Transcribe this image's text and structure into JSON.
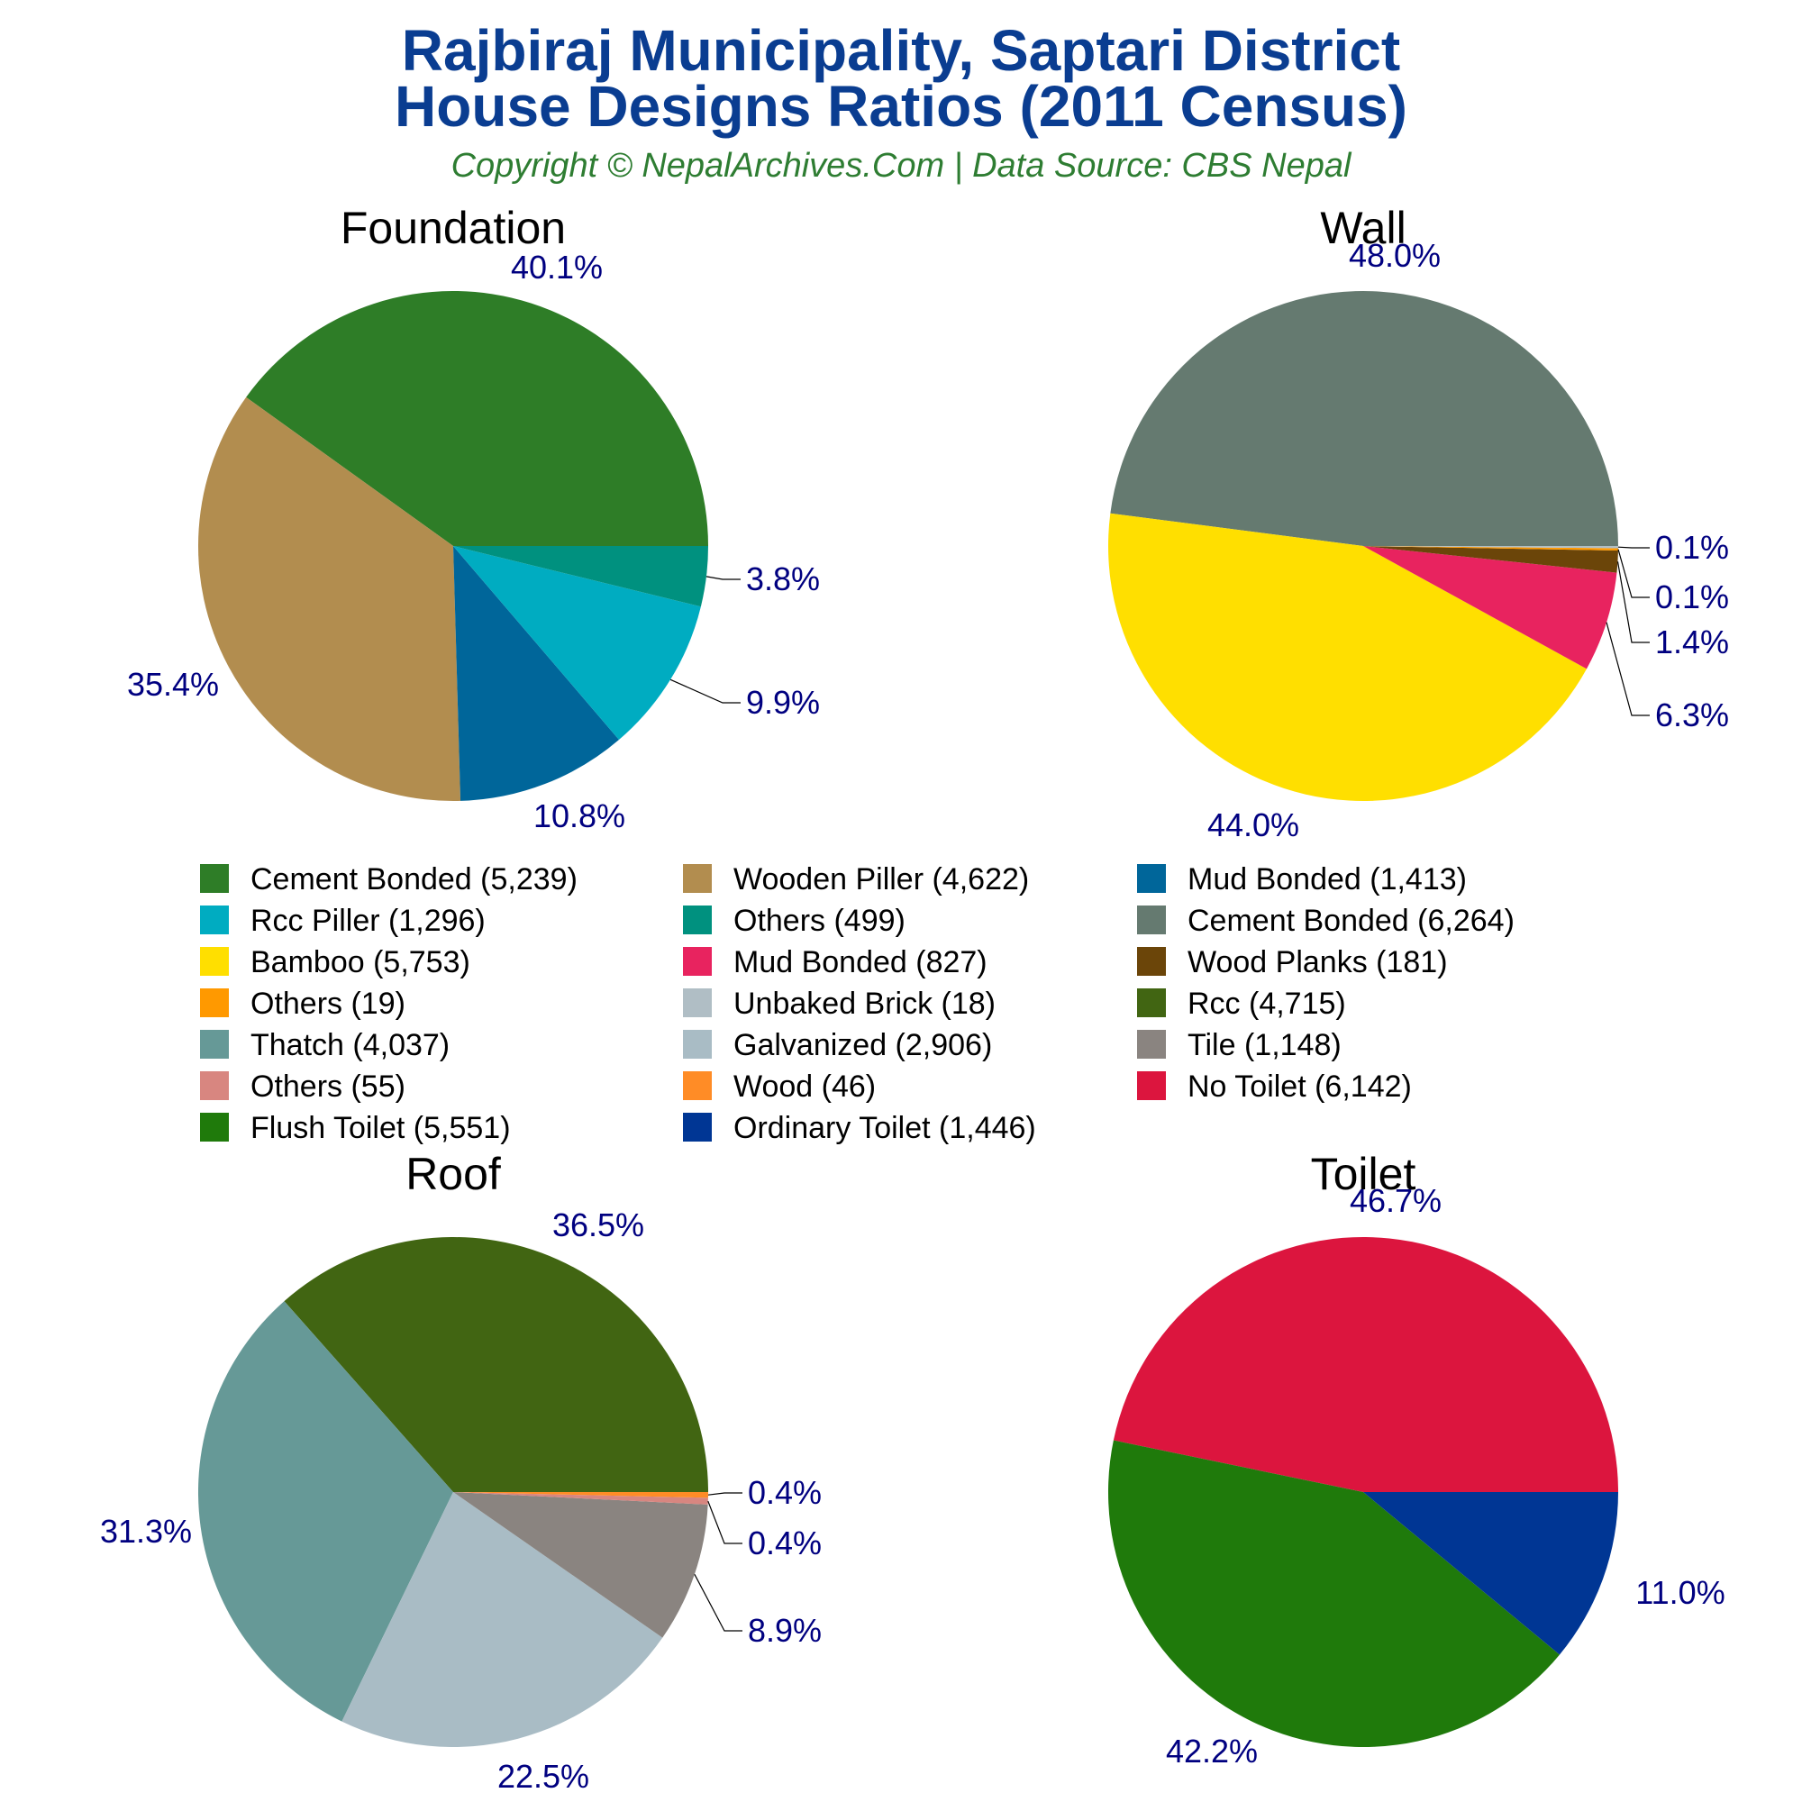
{
  "title_line1": "Rajbiraj Municipality, Saptari District",
  "title_line2": "House Designs Ratios (2011 Census)",
  "subtitle": "Copyright © NepalArchives.Com | Data Source: CBS Nepal",
  "chart_data": [
    {
      "type": "pie",
      "title": "Foundation",
      "start": "3 o'clock",
      "direction": "counter-clockwise",
      "slices": [
        {
          "label": "Cement Bonded",
          "value": 5239,
          "pct": "40.1%",
          "color": "#2e7d27"
        },
        {
          "label": "Wooden Piller",
          "value": 4622,
          "pct": "35.4%",
          "color": "#b28d4f"
        },
        {
          "label": "Mud Bonded",
          "value": 1413,
          "pct": "10.8%",
          "color": "#00669a"
        },
        {
          "label": "Rcc Piller",
          "value": 1296,
          "pct": "9.9%",
          "color": "#00acc1"
        },
        {
          "label": "Others",
          "value": 499,
          "pct": "3.8%",
          "color": "#00917f"
        }
      ]
    },
    {
      "type": "pie",
      "title": "Wall",
      "start": "3 o'clock",
      "direction": "counter-clockwise",
      "slices": [
        {
          "label": "Cement Bonded",
          "value": 6264,
          "pct": "48.0%",
          "color": "#657a70"
        },
        {
          "label": "Bamboo",
          "value": 5753,
          "pct": "44.0%",
          "color": "#ffdf00"
        },
        {
          "label": "Mud Bonded",
          "value": 827,
          "pct": "6.3%",
          "color": "#e8235f"
        },
        {
          "label": "Wood Planks",
          "value": 181,
          "pct": "1.4%",
          "color": "#6b4509"
        },
        {
          "label": "Others",
          "value": 19,
          "pct": "0.1%",
          "color": "#ff9900"
        },
        {
          "label": "Unbaked Brick",
          "value": 18,
          "pct": "0.1%",
          "color": "#b0bec5"
        }
      ]
    },
    {
      "type": "pie",
      "title": "Roof",
      "start": "3 o'clock",
      "direction": "counter-clockwise",
      "slices": [
        {
          "label": "Rcc",
          "value": 4715,
          "pct": "36.5%",
          "color": "#416512"
        },
        {
          "label": "Thatch",
          "value": 4037,
          "pct": "31.3%",
          "color": "#669997"
        },
        {
          "label": "Galvanized",
          "value": 2906,
          "pct": "22.5%",
          "color": "#a9bcc5"
        },
        {
          "label": "Tile",
          "value": 1148,
          "pct": "8.9%",
          "color": "#8a8480"
        },
        {
          "label": "Others",
          "value": 55,
          "pct": "0.4%",
          "color": "#d88680"
        },
        {
          "label": "Wood",
          "value": 46,
          "pct": "0.4%",
          "color": "#ff8c26"
        }
      ]
    },
    {
      "type": "pie",
      "title": "Toilet",
      "start": "3 o'clock",
      "direction": "counter-clockwise",
      "slices": [
        {
          "label": "No Toilet",
          "value": 6142,
          "pct": "46.7%",
          "color": "#dc153e"
        },
        {
          "label": "Flush Toilet",
          "value": 5551,
          "pct": "42.2%",
          "color": "#1f7a0b"
        },
        {
          "label": "Ordinary Toilet",
          "value": 1446,
          "pct": "11.0%",
          "color": "#003694"
        }
      ]
    }
  ],
  "legend": {
    "columns": 3,
    "items": [
      {
        "text": "Cement Bonded (5,239)",
        "color": "#2e7d27"
      },
      {
        "text": "Wooden Piller (4,622)",
        "color": "#b28d4f"
      },
      {
        "text": "Mud Bonded (1,413)",
        "color": "#00669a"
      },
      {
        "text": "Rcc Piller (1,296)",
        "color": "#00acc1"
      },
      {
        "text": "Others (499)",
        "color": "#00917f"
      },
      {
        "text": "Cement Bonded (6,264)",
        "color": "#657a70"
      },
      {
        "text": "Bamboo (5,753)",
        "color": "#ffdf00"
      },
      {
        "text": "Mud Bonded (827)",
        "color": "#e8235f"
      },
      {
        "text": "Wood Planks (181)",
        "color": "#6b4509"
      },
      {
        "text": "Others (19)",
        "color": "#ff9900"
      },
      {
        "text": "Unbaked Brick (18)",
        "color": "#b0bec5"
      },
      {
        "text": "Rcc (4,715)",
        "color": "#416512"
      },
      {
        "text": "Thatch (4,037)",
        "color": "#669997"
      },
      {
        "text": "Galvanized (2,906)",
        "color": "#a9bcc5"
      },
      {
        "text": "Tile (1,148)",
        "color": "#8a8480"
      },
      {
        "text": "Others (55)",
        "color": "#d88680"
      },
      {
        "text": "Wood (46)",
        "color": "#ff8c26"
      },
      {
        "text": "No Toilet (6,142)",
        "color": "#dc153e"
      },
      {
        "text": "Flush Toilet (5,551)",
        "color": "#1f7a0b"
      },
      {
        "text": "Ordinary Toilet (1,446)",
        "color": "#003694"
      }
    ]
  }
}
